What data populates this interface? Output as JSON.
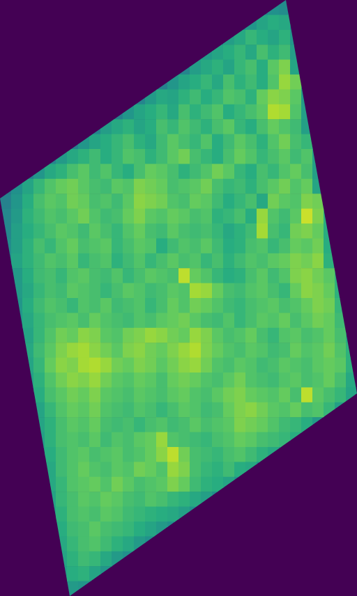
{
  "chart_data": {
    "type": "heatmap",
    "tick_labels": false,
    "clim": [
      0,
      100
    ],
    "cells": [
      [
        null,
        null,
        null,
        null,
        null,
        null,
        null,
        null,
        null,
        null,
        null,
        null,
        null,
        null,
        null,
        null,
        null,
        null,
        null,
        null,
        null,
        null,
        null,
        45,
        50,
        48,
        null,
        null,
        null,
        null,
        null,
        null
      ],
      [
        null,
        null,
        null,
        null,
        null,
        null,
        null,
        null,
        null,
        null,
        null,
        null,
        null,
        null,
        null,
        null,
        null,
        null,
        null,
        null,
        null,
        45,
        52,
        58,
        62,
        60,
        50,
        null,
        null,
        null,
        null,
        null
      ],
      [
        null,
        null,
        null,
        null,
        null,
        null,
        null,
        null,
        null,
        null,
        null,
        null,
        null,
        null,
        null,
        null,
        null,
        null,
        null,
        44,
        55,
        60,
        66,
        62,
        58,
        64,
        52,
        null,
        null,
        null,
        null,
        null
      ],
      [
        null,
        null,
        null,
        null,
        null,
        null,
        null,
        null,
        null,
        null,
        null,
        null,
        null,
        null,
        null,
        null,
        null,
        46,
        54,
        58,
        62,
        66,
        60,
        70,
        64,
        68,
        55,
        null,
        null,
        null,
        null,
        null
      ],
      [
        null,
        null,
        null,
        null,
        null,
        null,
        null,
        null,
        null,
        null,
        null,
        null,
        null,
        null,
        null,
        null,
        45,
        55,
        60,
        64,
        58,
        66,
        70,
        62,
        74,
        80,
        58,
        null,
        null,
        null,
        null,
        null
      ],
      [
        null,
        null,
        null,
        null,
        null,
        null,
        null,
        null,
        null,
        null,
        null,
        null,
        null,
        null,
        44,
        52,
        58,
        62,
        66,
        60,
        70,
        64,
        68,
        62,
        72,
        84,
        78,
        52,
        null,
        null,
        null,
        null
      ],
      [
        null,
        null,
        null,
        null,
        null,
        null,
        null,
        null,
        null,
        null,
        null,
        null,
        45,
        54,
        60,
        58,
        64,
        68,
        62,
        66,
        72,
        70,
        64,
        76,
        82,
        80,
        74,
        54,
        null,
        null,
        null,
        null
      ],
      [
        null,
        null,
        null,
        null,
        null,
        null,
        null,
        null,
        null,
        null,
        44,
        52,
        58,
        62,
        66,
        60,
        70,
        64,
        68,
        72,
        62,
        66,
        70,
        74,
        88,
        86,
        72,
        55,
        null,
        null,
        null,
        null
      ],
      [
        null,
        null,
        null,
        null,
        null,
        null,
        null,
        null,
        45,
        55,
        60,
        64,
        58,
        62,
        70,
        66,
        72,
        68,
        64,
        70,
        74,
        66,
        62,
        70,
        76,
        72,
        68,
        56,
        null,
        null,
        null,
        null
      ],
      [
        null,
        null,
        null,
        null,
        null,
        null,
        44,
        52,
        58,
        62,
        66,
        70,
        64,
        60,
        68,
        74,
        70,
        66,
        72,
        62,
        68,
        74,
        70,
        64,
        72,
        78,
        70,
        66,
        55,
        null,
        null,
        null
      ],
      [
        null,
        null,
        null,
        null,
        45,
        54,
        60,
        64,
        68,
        62,
        66,
        72,
        70,
        64,
        68,
        74,
        78,
        70,
        66,
        62,
        70,
        76,
        72,
        66,
        70,
        74,
        68,
        72,
        56,
        null,
        null,
        null
      ],
      [
        null,
        null,
        44,
        52,
        60,
        64,
        70,
        74,
        68,
        72,
        66,
        62,
        70,
        76,
        74,
        70,
        64,
        68,
        72,
        78,
        74,
        66,
        62,
        70,
        66,
        72,
        76,
        70,
        56,
        null,
        null,
        null
      ],
      [
        42,
        50,
        58,
        66,
        72,
        76,
        78,
        74,
        70,
        68,
        74,
        72,
        80,
        78,
        76,
        70,
        72,
        74,
        78,
        70,
        66,
        68,
        64,
        70,
        74,
        78,
        72,
        76,
        58,
        null,
        null,
        null
      ],
      [
        44,
        52,
        62,
        70,
        74,
        72,
        78,
        76,
        70,
        72,
        68,
        74,
        82,
        80,
        78,
        72,
        70,
        76,
        74,
        68,
        62,
        66,
        70,
        60,
        78,
        74,
        72,
        80,
        78,
        60,
        null,
        null
      ],
      [
        46,
        54,
        64,
        68,
        72,
        70,
        74,
        78,
        72,
        68,
        70,
        76,
        80,
        74,
        72,
        76,
        74,
        70,
        72,
        64,
        66,
        70,
        62,
        84,
        72,
        68,
        74,
        92,
        80,
        62,
        null,
        null
      ],
      [
        46,
        56,
        62,
        66,
        70,
        74,
        72,
        68,
        74,
        70,
        66,
        72,
        76,
        70,
        68,
        74,
        70,
        68,
        70,
        66,
        60,
        64,
        68,
        86,
        70,
        66,
        78,
        80,
        76,
        62,
        null,
        null
      ],
      [
        48,
        56,
        64,
        70,
        66,
        72,
        76,
        70,
        72,
        74,
        66,
        70,
        74,
        72,
        62,
        68,
        72,
        70,
        74,
        68,
        62,
        64,
        70,
        72,
        66,
        70,
        76,
        74,
        78,
        62,
        null,
        null
      ],
      [
        48,
        58,
        64,
        68,
        72,
        70,
        74,
        66,
        70,
        72,
        64,
        68,
        72,
        66,
        70,
        74,
        70,
        72,
        66,
        70,
        64,
        68,
        72,
        70,
        74,
        76,
        80,
        78,
        82,
        64,
        null,
        null
      ],
      [
        null,
        54,
        62,
        68,
        70,
        66,
        72,
        74,
        70,
        68,
        72,
        66,
        70,
        74,
        72,
        70,
        90,
        76,
        72,
        66,
        62,
        64,
        70,
        74,
        68,
        72,
        80,
        82,
        78,
        74,
        64,
        null
      ],
      [
        null,
        54,
        60,
        66,
        70,
        68,
        74,
        72,
        70,
        66,
        70,
        74,
        72,
        68,
        70,
        74,
        72,
        86,
        84,
        76,
        70,
        68,
        72,
        74,
        70,
        66,
        76,
        82,
        80,
        76,
        64,
        null
      ],
      [
        null,
        52,
        62,
        68,
        72,
        70,
        66,
        72,
        70,
        74,
        68,
        70,
        72,
        66,
        70,
        76,
        72,
        78,
        76,
        72,
        68,
        66,
        70,
        72,
        74,
        70,
        72,
        76,
        80,
        78,
        66,
        null
      ],
      [
        null,
        52,
        60,
        66,
        70,
        72,
        74,
        70,
        76,
        72,
        70,
        68,
        72,
        70,
        74,
        76,
        78,
        74,
        70,
        68,
        72,
        66,
        70,
        74,
        72,
        76,
        70,
        74,
        78,
        76,
        68,
        null
      ],
      [
        null,
        null,
        58,
        66,
        72,
        78,
        76,
        82,
        80,
        74,
        72,
        78,
        80,
        84,
        82,
        78,
        76,
        84,
        80,
        74,
        70,
        72,
        76,
        70,
        66,
        72,
        74,
        70,
        72,
        76,
        70,
        62
      ],
      [
        null,
        null,
        60,
        68,
        74,
        80,
        84,
        86,
        82,
        78,
        74,
        80,
        82,
        78,
        76,
        80,
        84,
        88,
        80,
        76,
        72,
        70,
        74,
        72,
        68,
        70,
        76,
        72,
        74,
        78,
        72,
        64
      ],
      [
        null,
        null,
        58,
        66,
        76,
        82,
        80,
        86,
        88,
        84,
        78,
        76,
        80,
        78,
        74,
        78,
        82,
        84,
        78,
        72,
        70,
        74,
        72,
        68,
        70,
        74,
        72,
        70,
        74,
        76,
        74,
        64
      ],
      [
        null,
        null,
        56,
        64,
        72,
        78,
        82,
        80,
        84,
        78,
        74,
        72,
        76,
        74,
        70,
        76,
        78,
        76,
        72,
        70,
        74,
        78,
        72,
        70,
        68,
        72,
        74,
        70,
        72,
        76,
        70,
        60
      ],
      [
        null,
        null,
        54,
        62,
        70,
        74,
        78,
        76,
        80,
        74,
        72,
        70,
        74,
        72,
        70,
        74,
        76,
        72,
        70,
        74,
        78,
        80,
        76,
        74,
        72,
        76,
        70,
        90,
        74,
        70,
        66,
        58
      ],
      [
        null,
        null,
        null,
        58,
        66,
        72,
        76,
        74,
        78,
        72,
        70,
        68,
        72,
        70,
        66,
        70,
        74,
        72,
        68,
        70,
        76,
        80,
        82,
        78,
        74,
        72,
        76,
        70,
        72,
        66,
        56,
        null
      ],
      [
        null,
        null,
        null,
        58,
        64,
        70,
        74,
        72,
        76,
        70,
        68,
        70,
        66,
        70,
        72,
        68,
        70,
        74,
        70,
        72,
        74,
        80,
        78,
        76,
        72,
        68,
        66,
        62,
        54,
        null,
        null,
        null
      ],
      [
        null,
        null,
        null,
        56,
        64,
        70,
        72,
        70,
        74,
        68,
        72,
        70,
        74,
        76,
        84,
        72,
        70,
        68,
        66,
        70,
        72,
        76,
        74,
        70,
        68,
        66,
        62,
        52,
        null,
        null,
        null,
        null
      ],
      [
        null,
        null,
        null,
        56,
        62,
        68,
        72,
        74,
        70,
        72,
        74,
        70,
        72,
        76,
        82,
        90,
        78,
        70,
        68,
        66,
        70,
        72,
        68,
        64,
        60,
        52,
        null,
        null,
        null,
        null,
        null,
        null
      ],
      [
        null,
        null,
        null,
        null,
        60,
        68,
        72,
        76,
        72,
        70,
        74,
        72,
        78,
        76,
        72,
        84,
        80,
        70,
        66,
        64,
        68,
        62,
        60,
        52,
        null,
        null,
        null,
        null,
        null,
        null,
        null,
        null
      ],
      [
        null,
        null,
        null,
        null,
        60,
        66,
        72,
        74,
        76,
        72,
        78,
        74,
        70,
        72,
        74,
        80,
        76,
        68,
        64,
        62,
        58,
        52,
        null,
        null,
        null,
        null,
        null,
        null,
        null,
        null,
        null,
        null
      ],
      [
        null,
        null,
        null,
        null,
        58,
        66,
        70,
        74,
        72,
        76,
        74,
        70,
        68,
        72,
        70,
        66,
        64,
        60,
        56,
        50,
        null,
        null,
        null,
        null,
        null,
        null,
        null,
        null,
        null,
        null,
        null,
        null
      ],
      [
        null,
        null,
        null,
        null,
        58,
        64,
        70,
        72,
        70,
        74,
        72,
        68,
        66,
        64,
        62,
        60,
        56,
        50,
        null,
        null,
        null,
        null,
        null,
        null,
        null,
        null,
        null,
        null,
        null,
        null,
        null,
        null
      ],
      [
        null,
        null,
        null,
        null,
        null,
        62,
        68,
        70,
        74,
        70,
        68,
        66,
        62,
        58,
        54,
        50,
        null,
        null,
        null,
        null,
        null,
        null,
        null,
        null,
        null,
        null,
        null,
        null,
        null,
        null,
        null,
        null
      ],
      [
        null,
        null,
        null,
        null,
        null,
        60,
        66,
        70,
        72,
        68,
        64,
        60,
        54,
        50,
        null,
        null,
        null,
        null,
        null,
        null,
        null,
        null,
        null,
        null,
        null,
        null,
        null,
        null,
        null,
        null,
        null,
        null
      ],
      [
        null,
        null,
        null,
        null,
        null,
        58,
        64,
        68,
        66,
        60,
        54,
        50,
        null,
        null,
        null,
        null,
        null,
        null,
        null,
        null,
        null,
        null,
        null,
        null,
        null,
        null,
        null,
        null,
        null,
        null,
        null,
        null
      ],
      [
        null,
        null,
        null,
        null,
        null,
        56,
        62,
        64,
        58,
        52,
        48,
        null,
        null,
        null,
        null,
        null,
        null,
        null,
        null,
        null,
        null,
        null,
        null,
        null,
        null,
        null,
        null,
        null,
        null,
        null,
        null,
        null
      ],
      [
        null,
        null,
        null,
        null,
        null,
        null,
        54,
        52,
        48,
        null,
        null,
        null,
        null,
        null,
        null,
        null,
        null,
        null,
        null,
        null,
        null,
        null,
        null,
        null,
        null,
        null,
        null,
        null,
        null,
        null,
        null,
        null
      ]
    ]
  }
}
